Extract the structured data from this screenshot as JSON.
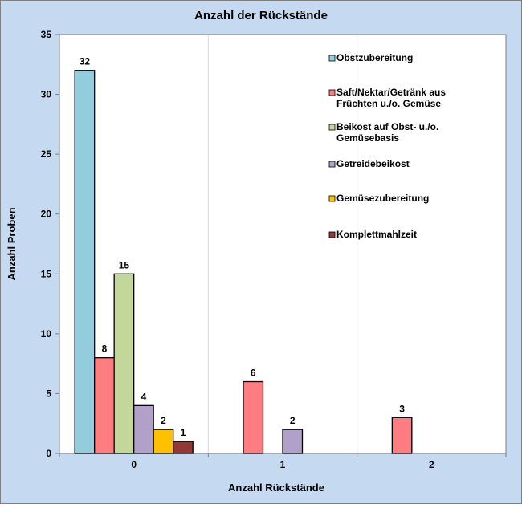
{
  "chart_data": {
    "type": "bar",
    "title": "Anzahl der Rückstände",
    "xlabel": "Anzahl Rückstände",
    "ylabel": "Anzahl Proben",
    "categories": [
      "0",
      "1",
      "2"
    ],
    "ylim": [
      0,
      35
    ],
    "yticks": [
      "0",
      "5",
      "10",
      "15",
      "20",
      "25",
      "30",
      "35"
    ],
    "grid": "vertical separators between categories",
    "legend_position": "top-right, inside plot",
    "series": [
      {
        "name": "Obstzubereitung",
        "name_lines": [
          "Obstzubereitung"
        ],
        "color": "#93CDDD",
        "values": [
          32,
          null,
          null
        ]
      },
      {
        "name": "Saft/Nektar/Getränk aus Früchten u./o. Gemüse",
        "name_lines": [
          "Saft/Nektar/Getränk aus",
          "Früchten u./o. Gemüse"
        ],
        "color": "#FF7C80",
        "values": [
          8,
          6,
          3
        ]
      },
      {
        "name": "Beikost auf Obst- u./o. Gemüsebasis",
        "name_lines": [
          "Beikost auf Obst- u./o.",
          "Gemüsebasis"
        ],
        "color": "#C4D79B",
        "values": [
          15,
          null,
          null
        ]
      },
      {
        "name": "Getreidebeikost",
        "name_lines": [
          "Getreidebeikost"
        ],
        "color": "#B1A0C7",
        "values": [
          4,
          2,
          null
        ]
      },
      {
        "name": "Gemüsezubereitung",
        "name_lines": [
          "Gemüsezubereitung"
        ],
        "color": "#FFC000",
        "values": [
          2,
          null,
          null
        ]
      },
      {
        "name": "Komplettmahlzeit",
        "name_lines": [
          "Komplettmahlzeit"
        ],
        "color": "#953735",
        "values": [
          1,
          null,
          null
        ]
      }
    ],
    "colors": {
      "background": "#C5D9F1",
      "plot_area": "#FFFFFF"
    }
  }
}
